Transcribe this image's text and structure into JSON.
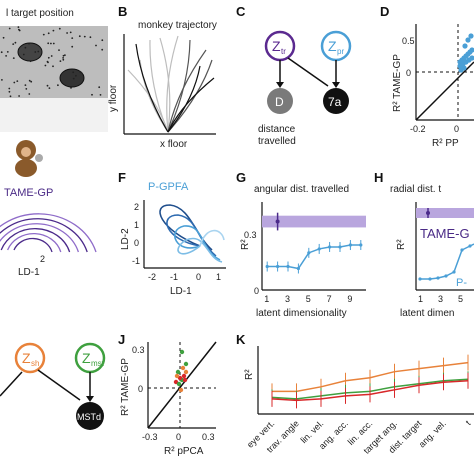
{
  "panels": {
    "A": {
      "letter": "",
      "title": "l target position"
    },
    "B": {
      "letter": "B",
      "title": "monkey trajectory",
      "xlabel": "x floor",
      "ylabel": "y floor"
    },
    "C": {
      "letter": "C",
      "node_tr_sub": "tr",
      "node_pr_sub": "pr",
      "node_d": "D",
      "node_7a": "7a",
      "caption_l1": "distance",
      "caption_l2": "travelled"
    },
    "D": {
      "letter": "D",
      "ylabel": "R² TAME-GP",
      "xlabel": "R² PP",
      "yticks": [
        "0.5",
        "0"
      ],
      "xticks": [
        "-0.2",
        "0"
      ]
    },
    "E": {
      "title": "TAME-GP",
      "xlabel": "LD-1",
      "xtick": "2"
    },
    "F": {
      "letter": "F",
      "title": "P-GPFA",
      "xlabel": "LD-1",
      "ylabel": "LD-2",
      "xticks": [
        "-2",
        "-1",
        "0",
        "1"
      ],
      "yticks": [
        "2",
        "1",
        "0",
        "-1"
      ]
    },
    "G": {
      "letter": "G",
      "title": "angular dist. travelled",
      "xlabel": "latent dimensionality",
      "ylabel": "R²",
      "xticks": [
        "1",
        "3",
        "5",
        "7",
        "9"
      ],
      "yticks": [
        "0.3",
        "0"
      ]
    },
    "H": {
      "letter": "H",
      "title": "radial dist. t",
      "xlabel": "latent dimen",
      "ylabel": "R²",
      "xticks": [
        "1",
        "3",
        "5"
      ],
      "tame_label": "TAME-G",
      "p_label": "P-"
    },
    "I": {
      "node_sh_sub": "sh",
      "node_mst_sub": "mst",
      "node_mstd": "MSTd"
    },
    "J": {
      "letter": "J",
      "xlabel": "R² pPCA",
      "ylabel": "R² TAME-GP",
      "xticks": [
        "-0.3",
        "0",
        "0.3"
      ],
      "yticks": [
        "0.3",
        "0"
      ]
    },
    "K": {
      "letter": "K",
      "ylabel": "R²",
      "categories": [
        "eye vert.",
        "trav. angle",
        "lin. vel.",
        "ang. acc.",
        "lin. acc.",
        "target ang.",
        "dist. target",
        "ang. vel.",
        "t"
      ]
    }
  },
  "colors": {
    "purple": "#4b2a8a",
    "blue": "#4a9fd6",
    "dark_blue": "#1f4e8c",
    "orange": "#e8823a",
    "green": "#3fa03f",
    "red": "#d8282a",
    "gray": "#7a7a7a"
  },
  "chart_data": [
    {
      "type": "line",
      "panel": "G",
      "x": [
        1,
        2,
        3,
        4,
        5,
        6,
        7,
        8,
        9,
        10
      ],
      "series": [
        {
          "values": [
            0.12,
            0.12,
            0.12,
            0.11,
            0.19,
            0.21,
            0.22,
            0.22,
            0.23,
            0.23
          ]
        }
      ],
      "band": [
        0.32,
        0.38
      ],
      "band_point": {
        "x": 2,
        "y": 0.35
      },
      "ylim": [
        0,
        0.45
      ],
      "xlim": [
        0.5,
        10.5
      ]
    },
    {
      "type": "line",
      "panel": "K",
      "categories": [
        "eye vert.",
        "trav. angle",
        "lin. vel.",
        "ang. acc.",
        "lin. acc.",
        "target ang.",
        "dist. target",
        "ang. vel.",
        "t"
      ],
      "series": [
        {
          "values": [
            0.05,
            0.05,
            0.08,
            0.12,
            0.14,
            0.18,
            0.2,
            0.22,
            0.24
          ]
        },
        {
          "values": [
            0.01,
            0.0,
            0.02,
            0.04,
            0.05,
            0.08,
            0.1,
            0.12,
            0.13
          ]
        },
        {
          "values": [
            0.0,
            -0.01,
            0.0,
            0.02,
            0.03,
            0.06,
            0.09,
            0.11,
            0.12
          ]
        }
      ],
      "ylim": [
        -0.1,
        0.35
      ]
    }
  ]
}
